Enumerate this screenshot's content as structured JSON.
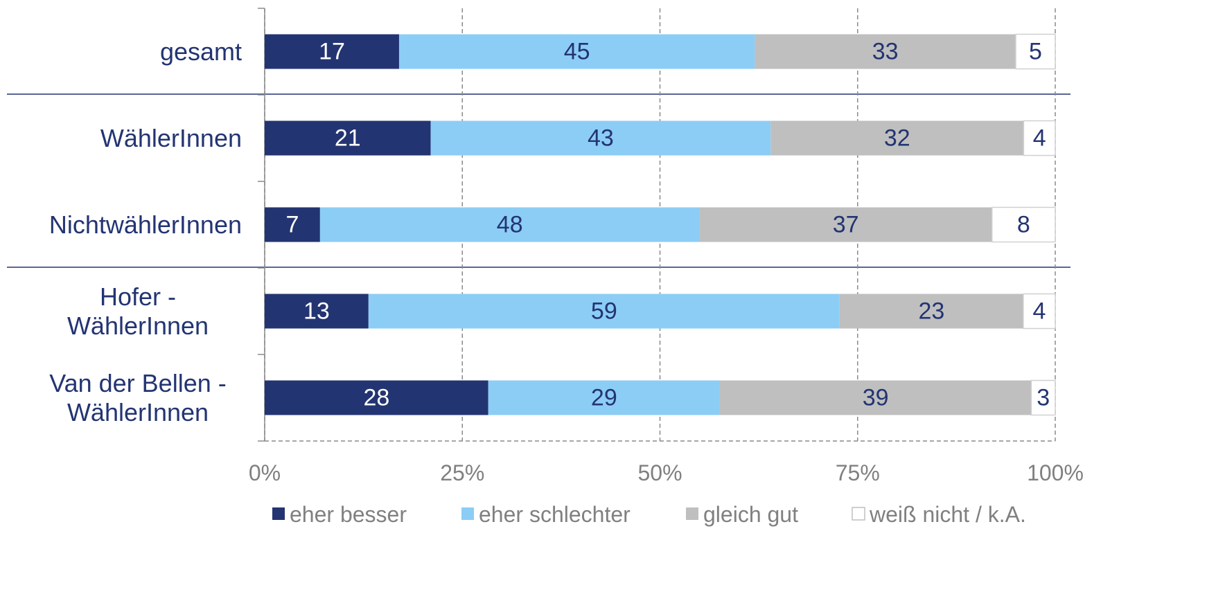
{
  "chart_data": {
    "type": "bar",
    "orientation": "horizontal",
    "stacked": "percent",
    "categories": [
      "gesamt",
      "WählerInnen",
      "NichtwählerInnen",
      "Hofer - WählerInnen",
      "Van der Bellen - WählerInnen"
    ],
    "series": [
      {
        "name": "eher besser",
        "color": "#233472",
        "values": [
          17,
          21,
          7,
          13,
          28
        ]
      },
      {
        "name": "eher schlechter",
        "color": "#8ccdf5",
        "values": [
          45,
          43,
          48,
          59,
          29
        ]
      },
      {
        "name": "gleich gut",
        "color": "#bfbfbf",
        "values": [
          33,
          32,
          37,
          23,
          39
        ]
      },
      {
        "name": "weiß nicht / k.A.",
        "color": "#ffffff",
        "values": [
          5,
          4,
          8,
          4,
          3
        ]
      }
    ],
    "xlim": [
      0,
      100
    ],
    "xticks": [
      {
        "value": 0,
        "label": "0%"
      },
      {
        "value": 25,
        "label": "25%"
      },
      {
        "value": 50,
        "label": "50%"
      },
      {
        "value": 75,
        "label": "75%"
      },
      {
        "value": 100,
        "label": "100%"
      }
    ],
    "grid": true,
    "legend": "bottom"
  }
}
